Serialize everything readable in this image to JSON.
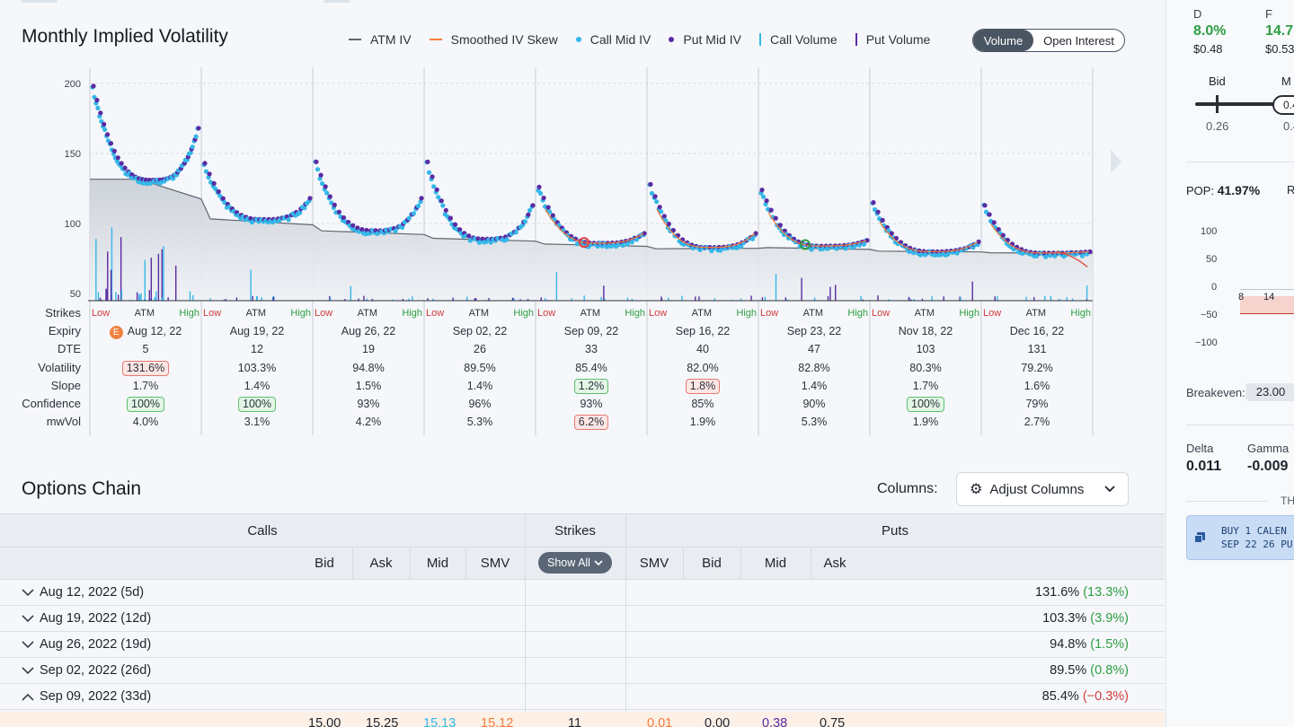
{
  "chart": {
    "title": "Monthly Implied Volatility",
    "legend": [
      {
        "label": "ATM IV",
        "symbol": "line",
        "color": "#5f666e"
      },
      {
        "label": "Smoothed IV Skew",
        "symbol": "line",
        "color": "#f47b3a"
      },
      {
        "label": "Call Mid IV",
        "symbol": "dot",
        "color": "#35b7e8"
      },
      {
        "label": "Put Mid IV",
        "symbol": "dot",
        "color": "#5b2aa3"
      },
      {
        "label": "Call Volume",
        "symbol": "bar",
        "color": "#35b7e8"
      },
      {
        "label": "Put Volume",
        "symbol": "bar",
        "color": "#5b2aa3"
      }
    ],
    "toggle": {
      "active": "Volume",
      "inactive": "Open Interest"
    },
    "row_labels": [
      "Strikes",
      "Expiry",
      "DTE",
      "Volatility",
      "Slope",
      "Confidence",
      "mwVol"
    ],
    "strike_labels": {
      "low": "Low",
      "atm": "ATM",
      "high": "High"
    },
    "expiries": [
      {
        "expiry": "Aug 12, 22",
        "earnings_badge": "E",
        "dte": "5",
        "volatility": "131.6%",
        "vol_flag": "red",
        "slope": "1.7%",
        "slope_flag": "",
        "confidence": "100%",
        "conf_flag": "green",
        "mwvol": "4.0%",
        "mw_flag": ""
      },
      {
        "expiry": "Aug 19, 22",
        "earnings_badge": "",
        "dte": "12",
        "volatility": "103.3%",
        "vol_flag": "",
        "slope": "1.4%",
        "slope_flag": "",
        "confidence": "100%",
        "conf_flag": "green",
        "mwvol": "3.1%",
        "mw_flag": ""
      },
      {
        "expiry": "Aug 26, 22",
        "earnings_badge": "",
        "dte": "19",
        "volatility": "94.8%",
        "vol_flag": "",
        "slope": "1.5%",
        "slope_flag": "",
        "confidence": "93%",
        "conf_flag": "",
        "mwvol": "4.2%",
        "mw_flag": ""
      },
      {
        "expiry": "Sep 02, 22",
        "earnings_badge": "",
        "dte": "26",
        "volatility": "89.5%",
        "vol_flag": "",
        "slope": "1.4%",
        "slope_flag": "",
        "confidence": "96%",
        "conf_flag": "",
        "mwvol": "5.3%",
        "mw_flag": ""
      },
      {
        "expiry": "Sep 09, 22",
        "earnings_badge": "",
        "dte": "33",
        "volatility": "85.4%",
        "vol_flag": "",
        "slope": "1.2%",
        "slope_flag": "green",
        "confidence": "93%",
        "conf_flag": "",
        "mwvol": "6.2%",
        "mw_flag": "red"
      },
      {
        "expiry": "Sep 16, 22",
        "earnings_badge": "",
        "dte": "40",
        "volatility": "82.0%",
        "vol_flag": "",
        "slope": "1.8%",
        "slope_flag": "red",
        "confidence": "85%",
        "conf_flag": "",
        "mwvol": "1.9%",
        "mw_flag": ""
      },
      {
        "expiry": "Sep 23, 22",
        "earnings_badge": "",
        "dte": "47",
        "volatility": "82.8%",
        "vol_flag": "",
        "slope": "1.4%",
        "slope_flag": "",
        "confidence": "90%",
        "conf_flag": "",
        "mwvol": "5.3%",
        "mw_flag": ""
      },
      {
        "expiry": "Nov 18, 22",
        "earnings_badge": "",
        "dte": "103",
        "volatility": "80.3%",
        "vol_flag": "",
        "slope": "1.7%",
        "slope_flag": "",
        "confidence": "100%",
        "conf_flag": "green",
        "mwvol": "1.9%",
        "mw_flag": ""
      },
      {
        "expiry": "Dec 16, 22",
        "earnings_badge": "",
        "dte": "131",
        "volatility": "79.2%",
        "vol_flag": "",
        "slope": "1.6%",
        "slope_flag": "",
        "confidence": "79%",
        "conf_flag": "",
        "mwvol": "2.7%",
        "mw_flag": ""
      }
    ]
  },
  "chart_data": {
    "type": "scatter",
    "title": "Monthly Implied Volatility",
    "y_ticks": [
      50,
      100,
      150,
      200
    ],
    "ylim": [
      45,
      205
    ],
    "atm_iv": [
      131.6,
      103.3,
      94.8,
      89.5,
      85.4,
      82.0,
      82.8,
      80.3,
      79.2
    ],
    "smile_peaks": [
      {
        "left": 198,
        "min": 131,
        "right": 168
      },
      {
        "left": 143,
        "min": 103,
        "right": 118
      },
      {
        "left": 144,
        "min": 95,
        "right": 118
      },
      {
        "left": 144,
        "min": 89,
        "right": 113
      },
      {
        "left": 126,
        "min": 86,
        "right": 93
      },
      {
        "left": 128,
        "min": 83,
        "right": 93
      },
      {
        "left": 124,
        "min": 84,
        "right": 88
      },
      {
        "left": 115,
        "min": 80,
        "right": 87
      },
      {
        "left": 113,
        "min": 79,
        "right": 80
      }
    ]
  },
  "options_chain": {
    "title": "Options Chain",
    "columns_label": "Columns:",
    "adjust_label": "Adjust Columns",
    "calls_header": "Calls",
    "strikes_header": "Strikes",
    "puts_header": "Puts",
    "show_all": "Show All",
    "call_cols": [
      "Bid",
      "Ask",
      "Mid",
      "SMV"
    ],
    "put_cols": [
      "SMV",
      "Bid",
      "Mid",
      "Ask"
    ],
    "rows": [
      {
        "expiry": "Aug 12, 2022 (5d)",
        "expanded": false,
        "iv": "131.6%",
        "chg": "(13.3%)",
        "dir": "pos"
      },
      {
        "expiry": "Aug 19, 2022 (12d)",
        "expanded": false,
        "iv": "103.3%",
        "chg": "(3.9%)",
        "dir": "pos"
      },
      {
        "expiry": "Aug 26, 2022 (19d)",
        "expanded": false,
        "iv": "94.8%",
        "chg": "(1.5%)",
        "dir": "pos"
      },
      {
        "expiry": "Sep 02, 2022 (26d)",
        "expanded": false,
        "iv": "89.5%",
        "chg": "(0.8%)",
        "dir": "pos"
      },
      {
        "expiry": "Sep 09, 2022 (33d)",
        "expanded": true,
        "iv": "85.4%",
        "chg": "(−0.3%)",
        "dir": "neg"
      }
    ],
    "partial_row": {
      "c_bid": "15.00",
      "c_ask": "15.25",
      "c_mid": "15.13",
      "c_smv": "15.12",
      "strike": "11",
      "p_smv": "0.01",
      "p_bid": "0.00",
      "p_mid": "0.38",
      "p_ask": "0.75"
    }
  },
  "right_panel": {
    "d_label": "D",
    "d_value": "8.0%",
    "d_sub": "$0.48",
    "f_label": "F",
    "f_value": "14.7",
    "f_sub": "$0.53",
    "bid_label": "Bid",
    "bid_value": "0.26",
    "mid_label": "M",
    "mid_value": "0.4",
    "mid_sub": "0.4",
    "pop_label": "POP:",
    "pop_value": "41.97%",
    "r_label": "R",
    "pl_ticks": [
      "100",
      "50",
      "0",
      "−50",
      "−100"
    ],
    "pl_x": [
      "8",
      "14"
    ],
    "breakeven_label": "Breakeven:",
    "breakeven_value": "23.00",
    "delta_label": "Delta",
    "delta_value": "0.011",
    "gamma_label": "Gamma",
    "gamma_value": "-0.009",
    "section_label": "TH",
    "trade_line1": "BUY 1 CALEN",
    "trade_line2": "SEP 22 26 PU"
  }
}
